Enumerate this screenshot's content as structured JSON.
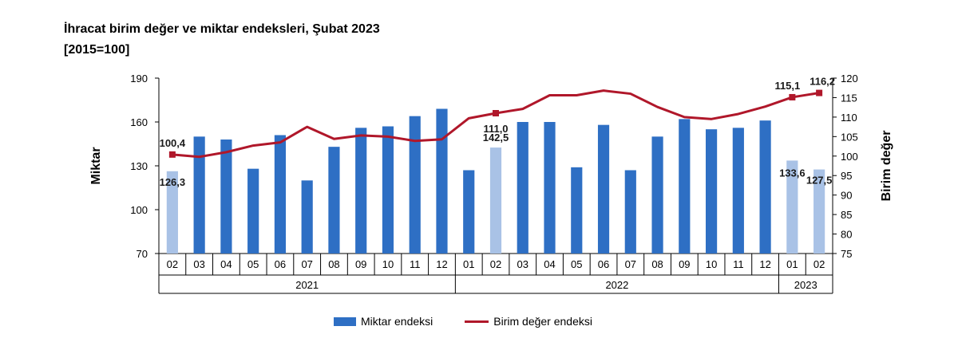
{
  "title_line1": "İhracat birim değer ve miktar endeksleri, Şubat 2023",
  "title_line2": "[2015=100]",
  "colors": {
    "bar": "#2E6FC4",
    "bar_highlight": "#A9C2E6",
    "line": "#B0172A"
  },
  "chart_data": {
    "type": "bar",
    "categories": [
      "02",
      "03",
      "04",
      "05",
      "06",
      "07",
      "08",
      "09",
      "10",
      "11",
      "12",
      "01",
      "02",
      "03",
      "04",
      "05",
      "06",
      "07",
      "08",
      "09",
      "10",
      "11",
      "12",
      "01",
      "02"
    ],
    "years": [
      {
        "label": "2021",
        "from": 0,
        "to": 10
      },
      {
        "label": "2022",
        "from": 11,
        "to": 22
      },
      {
        "label": "2023",
        "from": 23,
        "to": 24
      }
    ],
    "highlight": [
      0,
      12,
      23,
      24
    ],
    "series": [
      {
        "name": "Miktar endeksi",
        "axis": "left",
        "kind": "bar",
        "values": [
          126.3,
          150,
          148,
          128,
          151,
          120,
          143,
          156,
          157,
          164,
          169,
          127,
          142.5,
          160,
          160,
          129,
          158,
          127,
          150,
          162,
          155,
          156,
          161,
          133.6,
          127.5
        ]
      },
      {
        "name": "Birim değer endeksi",
        "axis": "right",
        "kind": "line",
        "values": [
          100.4,
          99.8,
          101.0,
          102.7,
          103.5,
          107.5,
          104.4,
          105.3,
          105.0,
          103.9,
          104.3,
          109.7,
          111.0,
          112.1,
          115.6,
          115.6,
          116.8,
          116.0,
          112.6,
          110.0,
          109.5,
          110.8,
          112.7,
          115.1,
          116.2
        ]
      }
    ],
    "data_labels": [
      {
        "series": 0,
        "index": 0,
        "text": "126,3"
      },
      {
        "series": 0,
        "index": 12,
        "text": "142,5"
      },
      {
        "series": 0,
        "index": 23,
        "text": "133,6"
      },
      {
        "series": 0,
        "index": 24,
        "text": "127,5"
      },
      {
        "series": 1,
        "index": 0,
        "text": "100,4"
      },
      {
        "series": 1,
        "index": 12,
        "text": "111,0"
      },
      {
        "series": 1,
        "index": 23,
        "text": "115,1"
      },
      {
        "series": 1,
        "index": 24,
        "text": "116,2"
      }
    ],
    "ylabel_left": "Miktar",
    "ylabel_right": "Birim değer",
    "ylim_left": [
      70,
      190
    ],
    "yticks_left": [
      70,
      100,
      130,
      160,
      190
    ],
    "ylim_right": [
      75,
      120
    ],
    "yticks_right": [
      75,
      80,
      85,
      90,
      95,
      100,
      105,
      110,
      115,
      120
    ],
    "grid": false,
    "legend_position": "bottom"
  }
}
